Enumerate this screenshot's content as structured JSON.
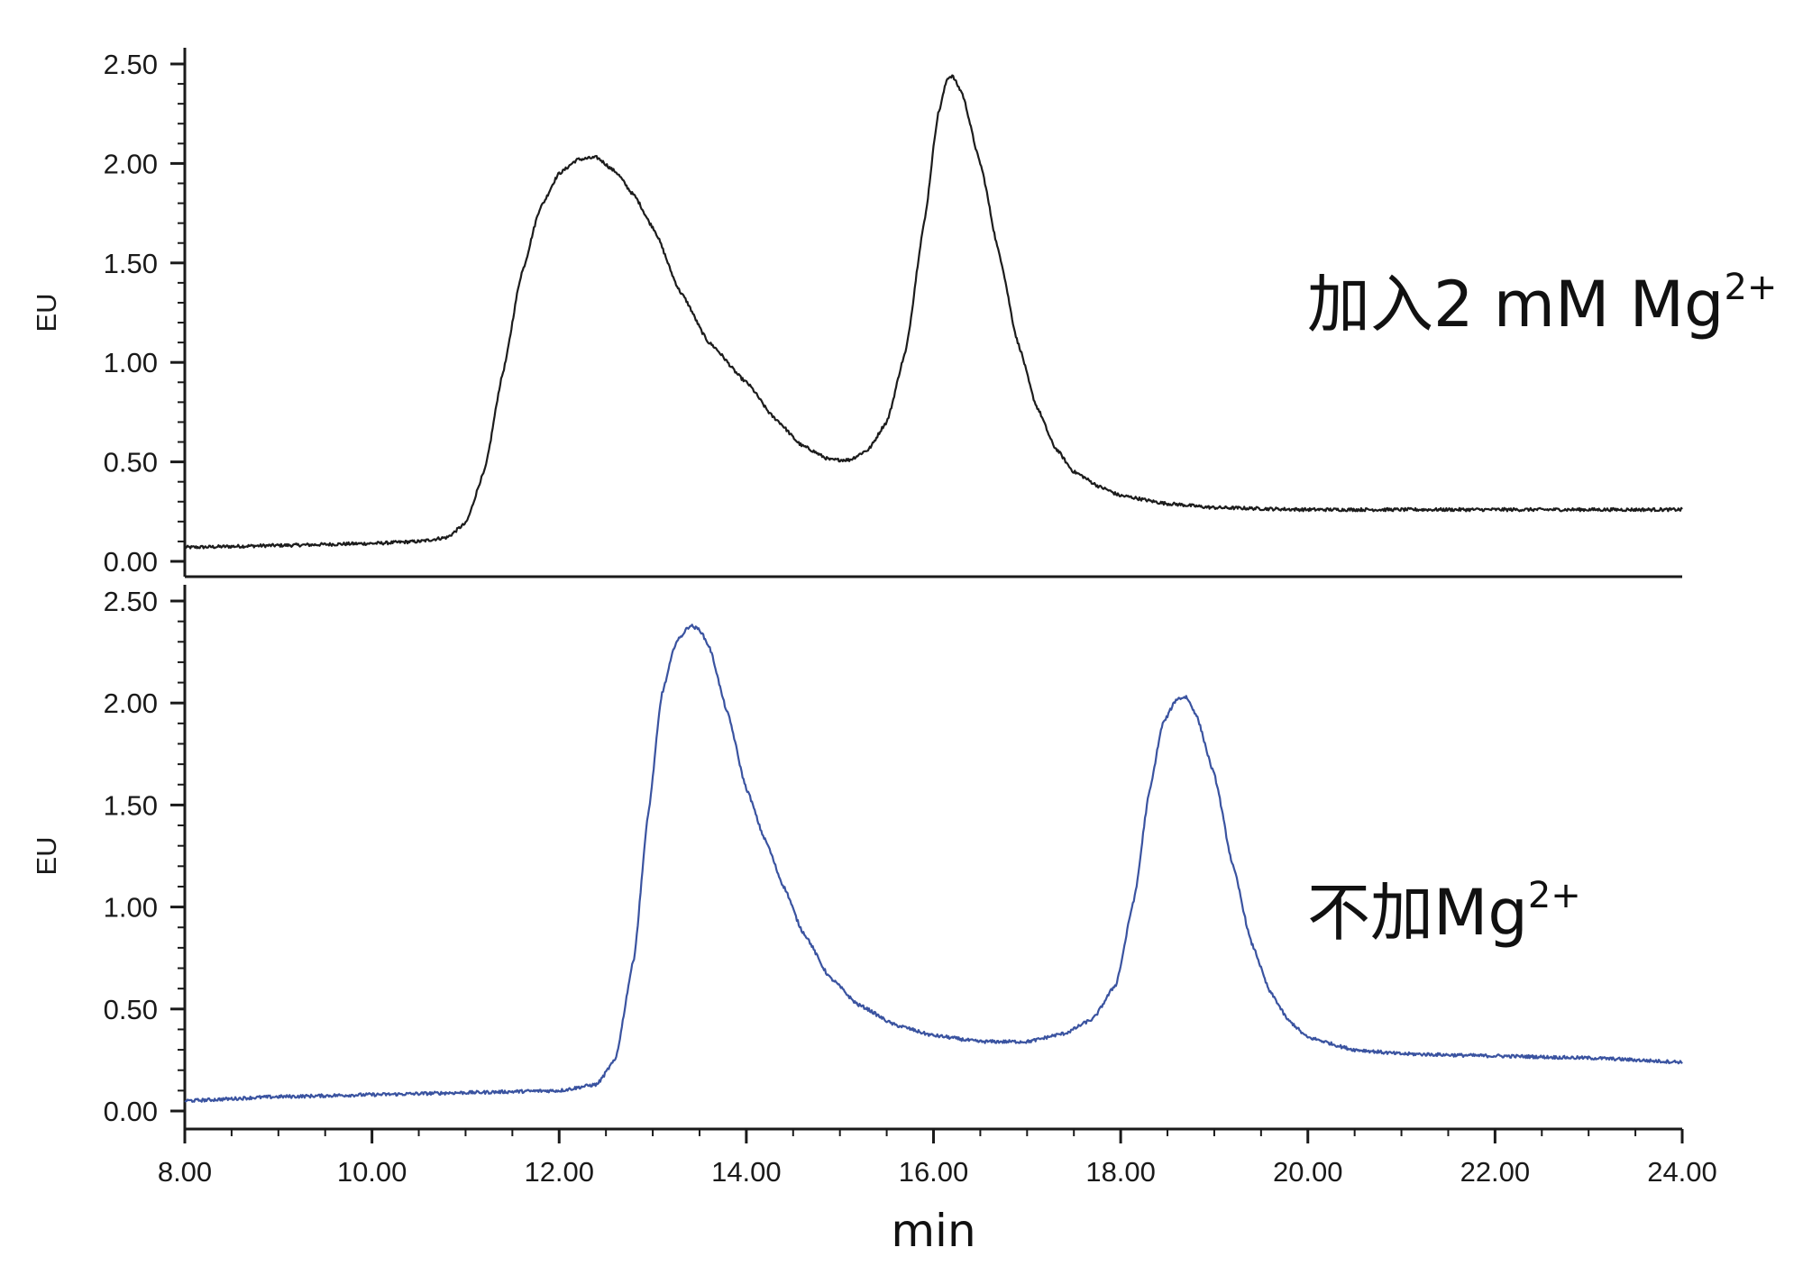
{
  "chart_data": [
    {
      "type": "line",
      "panel": "top",
      "ylabel": "EU",
      "ylim": [
        0,
        2.5
      ],
      "yticks": [
        "0.00",
        "0.50",
        "1.00",
        "1.50",
        "2.00",
        "2.50"
      ],
      "annotation": {
        "text": "加入2 mM Mg",
        "sup": "2+"
      },
      "series": [
        {
          "color": "#1c1c1c",
          "x": [
            8.0,
            9.0,
            10.0,
            10.5,
            10.8,
            11.0,
            11.2,
            11.4,
            11.6,
            11.8,
            12.0,
            12.2,
            12.4,
            12.6,
            12.8,
            13.0,
            13.3,
            13.6,
            14.0,
            14.3,
            14.6,
            14.9,
            15.1,
            15.3,
            15.5,
            15.7,
            15.9,
            16.05,
            16.15,
            16.2,
            16.3,
            16.5,
            16.7,
            16.9,
            17.1,
            17.3,
            17.5,
            17.8,
            18.0,
            18.5,
            19.0,
            20.0,
            21.0,
            22.0,
            23.0,
            24.0
          ],
          "y": [
            0.07,
            0.08,
            0.09,
            0.1,
            0.12,
            0.19,
            0.45,
            0.95,
            1.45,
            1.78,
            1.95,
            2.02,
            2.03,
            1.96,
            1.84,
            1.68,
            1.35,
            1.1,
            0.9,
            0.72,
            0.58,
            0.51,
            0.51,
            0.56,
            0.7,
            1.05,
            1.7,
            2.25,
            2.43,
            2.44,
            2.36,
            2.0,
            1.55,
            1.1,
            0.78,
            0.57,
            0.45,
            0.37,
            0.33,
            0.29,
            0.27,
            0.26,
            0.26,
            0.26,
            0.26,
            0.26
          ],
          "noise": 0.008
        }
      ]
    },
    {
      "type": "line",
      "panel": "bottom",
      "ylabel": "EU",
      "xlabel": "min",
      "xlim": [
        8.0,
        24.0
      ],
      "xticks": [
        "8.00",
        "10.00",
        "12.00",
        "14.00",
        "16.00",
        "18.00",
        "20.00",
        "22.00",
        "24.00"
      ],
      "ylim": [
        0,
        2.5
      ],
      "yticks": [
        "0.00",
        "0.50",
        "1.00",
        "1.50",
        "2.00",
        "2.50"
      ],
      "annotation": {
        "text": "不加Mg",
        "sup": "2+"
      },
      "series": [
        {
          "color": "#3a53a0",
          "x": [
            8.0,
            9.0,
            10.0,
            11.0,
            12.0,
            12.4,
            12.6,
            12.8,
            12.95,
            13.1,
            13.25,
            13.4,
            13.5,
            13.6,
            13.8,
            14.0,
            14.2,
            14.4,
            14.6,
            14.9,
            15.2,
            15.6,
            16.0,
            16.5,
            17.0,
            17.4,
            17.7,
            17.95,
            18.15,
            18.3,
            18.45,
            18.6,
            18.7,
            18.8,
            19.0,
            19.2,
            19.4,
            19.6,
            19.8,
            20.0,
            20.5,
            21.0,
            22.0,
            23.0,
            24.0
          ],
          "y": [
            0.05,
            0.07,
            0.08,
            0.09,
            0.1,
            0.13,
            0.25,
            0.75,
            1.45,
            2.05,
            2.3,
            2.38,
            2.36,
            2.28,
            1.95,
            1.58,
            1.33,
            1.1,
            0.88,
            0.65,
            0.52,
            0.42,
            0.37,
            0.34,
            0.34,
            0.38,
            0.45,
            0.62,
            1.05,
            1.55,
            1.9,
            2.02,
            2.03,
            1.95,
            1.65,
            1.2,
            0.82,
            0.58,
            0.44,
            0.36,
            0.3,
            0.28,
            0.27,
            0.26,
            0.24
          ],
          "noise": 0.008
        }
      ]
    }
  ]
}
